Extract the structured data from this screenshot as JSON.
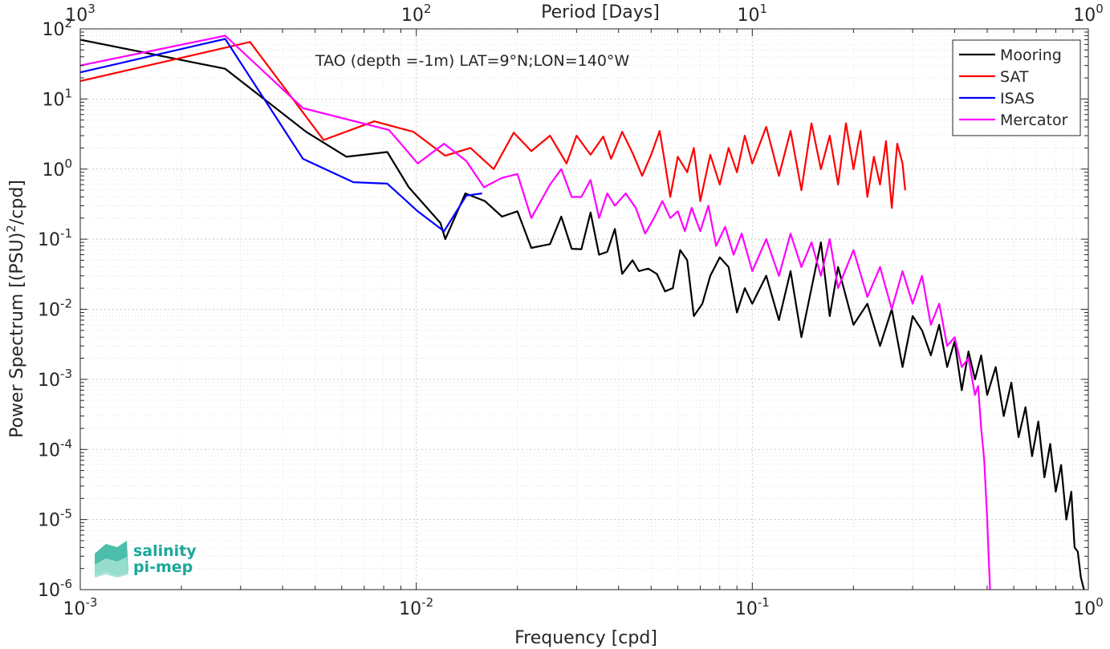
{
  "chart_data": {
    "type": "line",
    "title": "",
    "annotation": "TAO (depth =-1m) LAT=9°N;LON=140°W",
    "xlabel": "Frequency [cpd]",
    "ylabel_html": [
      "Power Spectrum [(PSU)",
      "2",
      "/cpd]"
    ],
    "top_xlabel": "Period [Days]",
    "xscale": "log",
    "yscale": "log",
    "xlim": [
      0.001,
      1
    ],
    "ylim": [
      1e-06,
      100
    ],
    "grid": true,
    "legend_position": "top-right",
    "x_ticks": [
      {
        "value": 0.001,
        "base": "10",
        "exp": "-3"
      },
      {
        "value": 0.01,
        "base": "10",
        "exp": "-2"
      },
      {
        "value": 0.1,
        "base": "10",
        "exp": "-1"
      },
      {
        "value": 1,
        "base": "10",
        "exp": "0"
      }
    ],
    "top_ticks": [
      {
        "value": 0.001,
        "base": "10",
        "exp": "3"
      },
      {
        "value": 0.01,
        "base": "10",
        "exp": "2"
      },
      {
        "value": 0.1,
        "base": "10",
        "exp": "1"
      },
      {
        "value": 1,
        "base": "10",
        "exp": "0"
      }
    ],
    "y_ticks": [
      {
        "value": 100,
        "base": "10",
        "exp": "2"
      },
      {
        "value": 10,
        "base": "10",
        "exp": "1"
      },
      {
        "value": 1,
        "base": "10",
        "exp": "0"
      },
      {
        "value": 0.1,
        "base": "10",
        "exp": "-1"
      },
      {
        "value": 0.01,
        "base": "10",
        "exp": "-2"
      },
      {
        "value": 0.001,
        "base": "10",
        "exp": "-3"
      },
      {
        "value": 0.0001,
        "base": "10",
        "exp": "-4"
      },
      {
        "value": 1e-05,
        "base": "10",
        "exp": "-5"
      },
      {
        "value": 1e-06,
        "base": "10",
        "exp": "-6"
      }
    ],
    "series": [
      {
        "name": "Mooring",
        "color": "#000000",
        "points": [
          [
            0.001,
            70
          ],
          [
            0.0027,
            27
          ],
          [
            0.0047,
            3.4
          ],
          [
            0.0062,
            1.5
          ],
          [
            0.0082,
            1.75
          ],
          [
            0.0095,
            0.55
          ],
          [
            0.0118,
            0.17
          ],
          [
            0.0122,
            0.1
          ],
          [
            0.014,
            0.45
          ],
          [
            0.016,
            0.35
          ],
          [
            0.018,
            0.21
          ],
          [
            0.02,
            0.25
          ],
          [
            0.022,
            0.075
          ],
          [
            0.025,
            0.085
          ],
          [
            0.027,
            0.21
          ],
          [
            0.029,
            0.073
          ],
          [
            0.031,
            0.072
          ],
          [
            0.033,
            0.24
          ],
          [
            0.035,
            0.06
          ],
          [
            0.037,
            0.066
          ],
          [
            0.039,
            0.14
          ],
          [
            0.041,
            0.032
          ],
          [
            0.044,
            0.05
          ],
          [
            0.046,
            0.035
          ],
          [
            0.049,
            0.038
          ],
          [
            0.052,
            0.032
          ],
          [
            0.055,
            0.018
          ],
          [
            0.058,
            0.02
          ],
          [
            0.061,
            0.07
          ],
          [
            0.064,
            0.05
          ],
          [
            0.067,
            0.008
          ],
          [
            0.071,
            0.012
          ],
          [
            0.075,
            0.03
          ],
          [
            0.08,
            0.055
          ],
          [
            0.085,
            0.04
          ],
          [
            0.09,
            0.009
          ],
          [
            0.095,
            0.02
          ],
          [
            0.1,
            0.012
          ],
          [
            0.11,
            0.03
          ],
          [
            0.12,
            0.007
          ],
          [
            0.13,
            0.035
          ],
          [
            0.14,
            0.004
          ],
          [
            0.15,
            0.02
          ],
          [
            0.16,
            0.09
          ],
          [
            0.17,
            0.008
          ],
          [
            0.18,
            0.04
          ],
          [
            0.2,
            0.006
          ],
          [
            0.22,
            0.012
          ],
          [
            0.24,
            0.003
          ],
          [
            0.26,
            0.01
          ],
          [
            0.28,
            0.0015
          ],
          [
            0.3,
            0.008
          ],
          [
            0.32,
            0.005
          ],
          [
            0.34,
            0.0022
          ],
          [
            0.36,
            0.006
          ],
          [
            0.38,
            0.0015
          ],
          [
            0.4,
            0.0035
          ],
          [
            0.42,
            0.0007
          ],
          [
            0.44,
            0.0025
          ],
          [
            0.46,
            0.001
          ],
          [
            0.48,
            0.0022
          ],
          [
            0.5,
            0.0006
          ],
          [
            0.53,
            0.0015
          ],
          [
            0.56,
            0.0003
          ],
          [
            0.59,
            0.0009
          ],
          [
            0.62,
            0.00015
          ],
          [
            0.65,
            0.0004
          ],
          [
            0.68,
            8e-05
          ],
          [
            0.71,
            0.00025
          ],
          [
            0.74,
            4e-05
          ],
          [
            0.77,
            0.00012
          ],
          [
            0.8,
            2.5e-05
          ],
          [
            0.83,
            6e-05
          ],
          [
            0.86,
            1e-05
          ],
          [
            0.89,
            2.5e-05
          ],
          [
            0.91,
            4e-06
          ],
          [
            0.93,
            3.5e-06
          ],
          [
            0.95,
            1.5e-06
          ],
          [
            0.97,
            1e-06
          ]
        ]
      },
      {
        "name": "SAT",
        "color": "#ff0000",
        "points": [
          [
            0.001,
            18
          ],
          [
            0.0032,
            65
          ],
          [
            0.0053,
            2.6
          ],
          [
            0.0075,
            4.8
          ],
          [
            0.0098,
            3.4
          ],
          [
            0.0122,
            1.55
          ],
          [
            0.0145,
            2.0
          ],
          [
            0.017,
            1.0
          ],
          [
            0.0195,
            3.3
          ],
          [
            0.022,
            1.8
          ],
          [
            0.025,
            3.0
          ],
          [
            0.028,
            1.2
          ],
          [
            0.03,
            3.0
          ],
          [
            0.033,
            1.6
          ],
          [
            0.036,
            2.9
          ],
          [
            0.038,
            1.4
          ],
          [
            0.041,
            3.4
          ],
          [
            0.044,
            1.7
          ],
          [
            0.047,
            0.8
          ],
          [
            0.05,
            1.6
          ],
          [
            0.053,
            3.5
          ],
          [
            0.055,
            1.2
          ],
          [
            0.057,
            0.4
          ],
          [
            0.06,
            1.5
          ],
          [
            0.064,
            0.9
          ],
          [
            0.067,
            2.0
          ],
          [
            0.07,
            0.35
          ],
          [
            0.075,
            1.6
          ],
          [
            0.08,
            0.6
          ],
          [
            0.085,
            2.0
          ],
          [
            0.09,
            0.9
          ],
          [
            0.095,
            3.0
          ],
          [
            0.1,
            1.2
          ],
          [
            0.11,
            4.0
          ],
          [
            0.12,
            0.8
          ],
          [
            0.13,
            3.5
          ],
          [
            0.14,
            0.5
          ],
          [
            0.15,
            4.5
          ],
          [
            0.16,
            1.0
          ],
          [
            0.17,
            3.0
          ],
          [
            0.18,
            0.6
          ],
          [
            0.19,
            4.5
          ],
          [
            0.2,
            1.0
          ],
          [
            0.21,
            3.5
          ],
          [
            0.22,
            0.4
          ],
          [
            0.23,
            1.5
          ],
          [
            0.24,
            0.6
          ],
          [
            0.25,
            2.5
          ],
          [
            0.26,
            0.28
          ],
          [
            0.27,
            2.3
          ],
          [
            0.28,
            1.2
          ],
          [
            0.285,
            0.5
          ]
        ]
      },
      {
        "name": "ISAS",
        "color": "#0000ff",
        "points": [
          [
            0.001,
            24
          ],
          [
            0.0027,
            72
          ],
          [
            0.0046,
            1.4
          ],
          [
            0.0065,
            0.65
          ],
          [
            0.0082,
            0.62
          ],
          [
            0.0101,
            0.25
          ],
          [
            0.0121,
            0.13
          ],
          [
            0.0141,
            0.42
          ],
          [
            0.0157,
            0.45
          ]
        ]
      },
      {
        "name": "Mercator",
        "color": "#ff00ff",
        "points": [
          [
            0.001,
            30
          ],
          [
            0.0027,
            80
          ],
          [
            0.0046,
            7.4
          ],
          [
            0.0083,
            3.6
          ],
          [
            0.0101,
            1.2
          ],
          [
            0.0121,
            2.3
          ],
          [
            0.0141,
            1.3
          ],
          [
            0.0159,
            0.55
          ],
          [
            0.018,
            0.75
          ],
          [
            0.02,
            0.85
          ],
          [
            0.022,
            0.2
          ],
          [
            0.025,
            0.6
          ],
          [
            0.027,
            1.0
          ],
          [
            0.029,
            0.4
          ],
          [
            0.031,
            0.4
          ],
          [
            0.033,
            0.7
          ],
          [
            0.035,
            0.2
          ],
          [
            0.037,
            0.45
          ],
          [
            0.039,
            0.3
          ],
          [
            0.042,
            0.45
          ],
          [
            0.045,
            0.28
          ],
          [
            0.048,
            0.12
          ],
          [
            0.051,
            0.2
          ],
          [
            0.054,
            0.35
          ],
          [
            0.057,
            0.2
          ],
          [
            0.06,
            0.25
          ],
          [
            0.063,
            0.13
          ],
          [
            0.066,
            0.28
          ],
          [
            0.07,
            0.13
          ],
          [
            0.074,
            0.3
          ],
          [
            0.078,
            0.08
          ],
          [
            0.083,
            0.15
          ],
          [
            0.088,
            0.06
          ],
          [
            0.093,
            0.12
          ],
          [
            0.1,
            0.035
          ],
          [
            0.11,
            0.1
          ],
          [
            0.12,
            0.03
          ],
          [
            0.13,
            0.12
          ],
          [
            0.14,
            0.04
          ],
          [
            0.15,
            0.09
          ],
          [
            0.16,
            0.03
          ],
          [
            0.17,
            0.1
          ],
          [
            0.18,
            0.02
          ],
          [
            0.2,
            0.07
          ],
          [
            0.22,
            0.015
          ],
          [
            0.24,
            0.04
          ],
          [
            0.26,
            0.01
          ],
          [
            0.28,
            0.035
          ],
          [
            0.3,
            0.012
          ],
          [
            0.32,
            0.03
          ],
          [
            0.34,
            0.006
          ],
          [
            0.36,
            0.012
          ],
          [
            0.38,
            0.003
          ],
          [
            0.4,
            0.004
          ],
          [
            0.42,
            0.0015
          ],
          [
            0.44,
            0.002
          ],
          [
            0.46,
            0.0006
          ],
          [
            0.47,
            0.0008
          ],
          [
            0.48,
            0.0002
          ],
          [
            0.49,
            7e-05
          ],
          [
            0.5,
            1e-05
          ],
          [
            0.505,
            3e-06
          ],
          [
            0.51,
            1e-06
          ]
        ]
      }
    ]
  },
  "logo": {
    "line1": "salinity",
    "line2": "pi-mep"
  }
}
